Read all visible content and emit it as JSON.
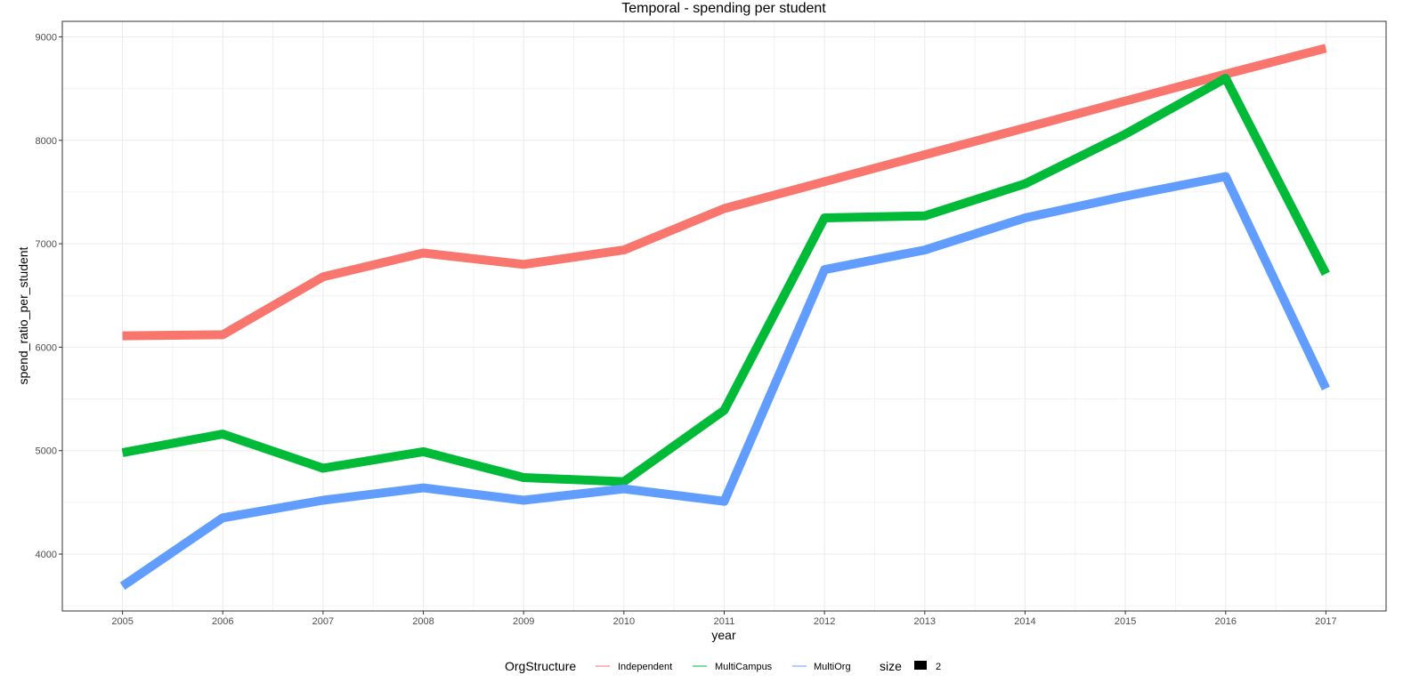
{
  "chart_data": {
    "type": "line",
    "title": "Temporal - spending per student",
    "xlabel": "year",
    "ylabel": "spend_ratio_per_student",
    "x": [
      2005,
      2006,
      2007,
      2008,
      2009,
      2010,
      2011,
      2012,
      2013,
      2014,
      2015,
      2016,
      2017
    ],
    "xlim": [
      2004.4,
      2017.6
    ],
    "ylim": [
      3450,
      9150
    ],
    "y_ticks": [
      4000,
      5000,
      6000,
      7000,
      8000,
      9000
    ],
    "grid": true,
    "legend_placement": "bottom",
    "series": [
      {
        "name": "Independent",
        "color": "#F8766D",
        "values": [
          6110,
          6120,
          6680,
          6910,
          6800,
          6940,
          7340,
          7600,
          7860,
          8120,
          8380,
          8640,
          8890
        ]
      },
      {
        "name": "MultiCampus",
        "color": "#00BA38",
        "values": [
          4980,
          5160,
          4830,
          4990,
          4740,
          4700,
          5390,
          7250,
          7270,
          7580,
          8060,
          8600,
          6710
        ]
      },
      {
        "name": "MultiOrg",
        "color": "#619CFF",
        "values": [
          3690,
          4350,
          4520,
          4640,
          4520,
          4630,
          4510,
          6750,
          6940,
          7250,
          7460,
          7650,
          5600
        ]
      }
    ],
    "legend": {
      "title": "OrgStructure",
      "size_title": "size",
      "size_label": "2"
    }
  }
}
